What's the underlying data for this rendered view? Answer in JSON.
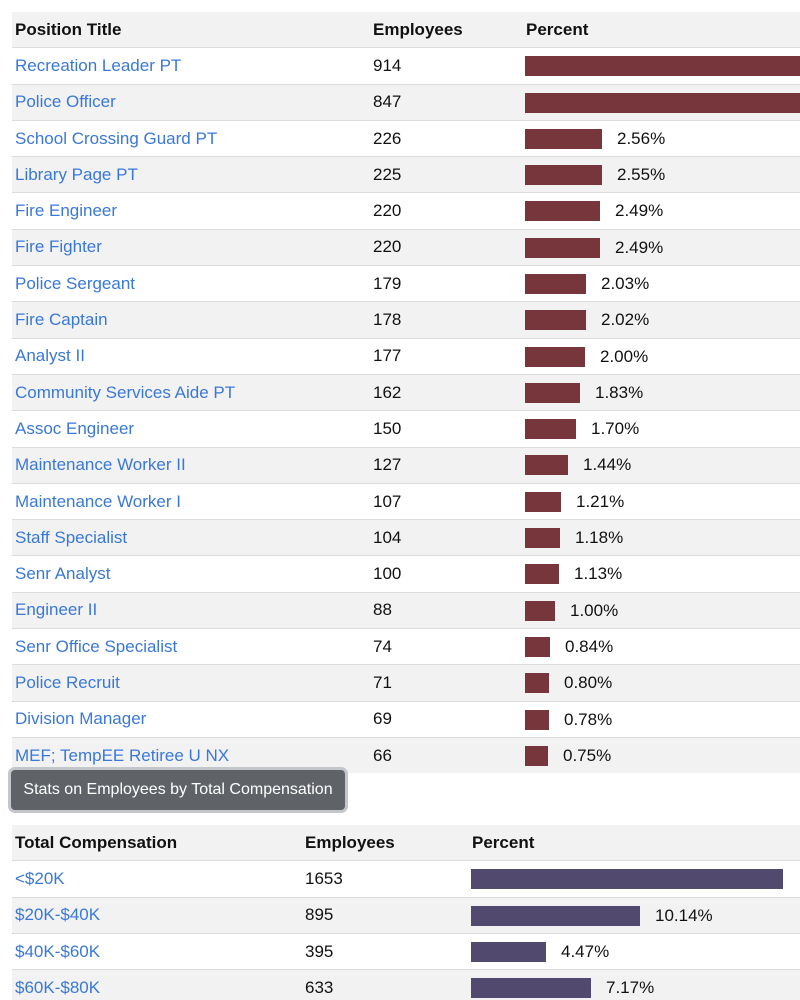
{
  "colors": {
    "position_bar": "#76363c",
    "comp_bar": "#524a6e",
    "link": "#3a78d8"
  },
  "position_table": {
    "headers": [
      "Position Title",
      "Employees",
      "Percent"
    ],
    "rows": [
      {
        "title": "Recreation Leader PT",
        "employees": 914,
        "percent": ""
      },
      {
        "title": "Police Officer",
        "employees": 847,
        "percent": ""
      },
      {
        "title": "School Crossing Guard PT",
        "employees": 226,
        "percent": "2.56%"
      },
      {
        "title": "Library Page PT",
        "employees": 225,
        "percent": "2.55%"
      },
      {
        "title": "Fire Engineer",
        "employees": 220,
        "percent": "2.49%"
      },
      {
        "title": "Fire Fighter",
        "employees": 220,
        "percent": "2.49%"
      },
      {
        "title": "Police Sergeant",
        "employees": 179,
        "percent": "2.03%"
      },
      {
        "title": "Fire Captain",
        "employees": 178,
        "percent": "2.02%"
      },
      {
        "title": "Analyst II",
        "employees": 177,
        "percent": "2.00%"
      },
      {
        "title": "Community Services Aide PT",
        "employees": 162,
        "percent": "1.83%"
      },
      {
        "title": "Assoc Engineer",
        "employees": 150,
        "percent": "1.70%"
      },
      {
        "title": "Maintenance Worker II",
        "employees": 127,
        "percent": "1.44%"
      },
      {
        "title": "Maintenance Worker I",
        "employees": 107,
        "percent": "1.21%"
      },
      {
        "title": "Staff Specialist",
        "employees": 104,
        "percent": "1.18%"
      },
      {
        "title": "Senr Analyst",
        "employees": 100,
        "percent": "1.13%"
      },
      {
        "title": "Engineer II",
        "employees": 88,
        "percent": "1.00%"
      },
      {
        "title": "Senr Office Specialist",
        "employees": 74,
        "percent": "0.84%"
      },
      {
        "title": "Police Recruit",
        "employees": 71,
        "percent": "0.80%"
      },
      {
        "title": "Division Manager",
        "employees": 69,
        "percent": "0.78%"
      },
      {
        "title": "MEF; TempEE Retiree U NX",
        "employees": 66,
        "percent": "0.75%"
      }
    ]
  },
  "comp_button": {
    "label": "Stats on Employees by Total Compensation"
  },
  "comp_table": {
    "headers": [
      "Total Compensation",
      "Employees",
      "Percent"
    ],
    "rows": [
      {
        "title": "<$20K",
        "employees": 1653,
        "percent": ""
      },
      {
        "title": "$20K-$40K",
        "employees": 895,
        "percent": "10.14%"
      },
      {
        "title": "$40K-$60K",
        "employees": 395,
        "percent": "4.47%"
      },
      {
        "title": "$60K-$80K",
        "employees": 633,
        "percent": "7.17%"
      }
    ]
  }
}
